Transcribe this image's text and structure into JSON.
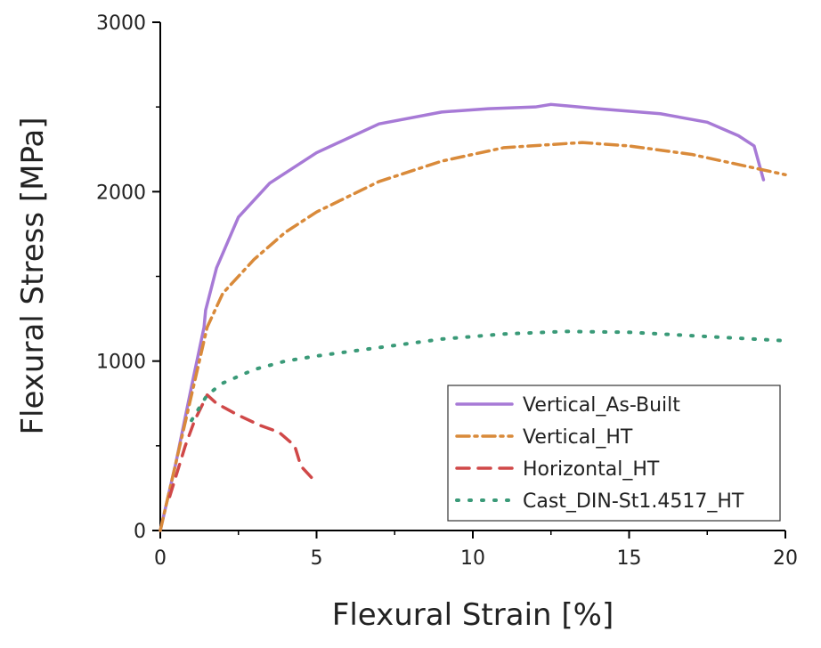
{
  "chart_data": {
    "type": "line",
    "title": "",
    "xlabel": "Flexural Strain [%]",
    "ylabel": "Flexural Stress [MPa]",
    "xlim": [
      0,
      20
    ],
    "ylim": [
      0,
      3000
    ],
    "xticks": [
      0,
      5,
      10,
      15,
      20
    ],
    "yticks": [
      0,
      1000,
      2000,
      3000
    ],
    "grid": false,
    "legend_position": "bottom-right",
    "series": [
      {
        "name": "Vertical_As-Built",
        "color": "#a77ad6",
        "style": "solid",
        "x": [
          0,
          0.5,
          1,
          1.4,
          1.45,
          1.8,
          2.5,
          3.5,
          5,
          7,
          9,
          10.5,
          12,
          12.5,
          14,
          16,
          17.5,
          18.5,
          19,
          19.3
        ],
        "y": [
          0,
          400,
          850,
          1200,
          1300,
          1550,
          1850,
          2050,
          2230,
          2400,
          2470,
          2490,
          2500,
          2515,
          2490,
          2460,
          2410,
          2330,
          2270,
          2070
        ]
      },
      {
        "name": "Vertical_HT",
        "color": "#d98a3a",
        "style": "dashdot",
        "x": [
          0,
          1,
          1.5,
          2,
          3,
          4,
          5,
          7,
          9,
          11,
          13.5,
          15,
          17,
          20
        ],
        "y": [
          0,
          800,
          1200,
          1400,
          1600,
          1760,
          1880,
          2060,
          2180,
          2260,
          2290,
          2270,
          2220,
          2100
        ]
      },
      {
        "name": "Horizontal_HT",
        "color": "#d04848",
        "style": "dash",
        "x": [
          0.3,
          0.8,
          1.1,
          1.5,
          1.8,
          2.5,
          3.2,
          3.8,
          4.3,
          4.5,
          4.9
        ],
        "y": [
          200,
          500,
          650,
          800,
          750,
          680,
          620,
          580,
          500,
          380,
          300
        ]
      },
      {
        "name": "Cast_DIN-St1.4517_HT",
        "color": "#3a9a78",
        "style": "dot",
        "x": [
          1,
          1.5,
          2,
          3,
          4,
          5,
          7,
          9,
          11,
          13,
          15,
          17,
          20
        ],
        "y": [
          650,
          800,
          870,
          950,
          1000,
          1030,
          1080,
          1130,
          1160,
          1175,
          1170,
          1150,
          1120
        ]
      }
    ]
  }
}
